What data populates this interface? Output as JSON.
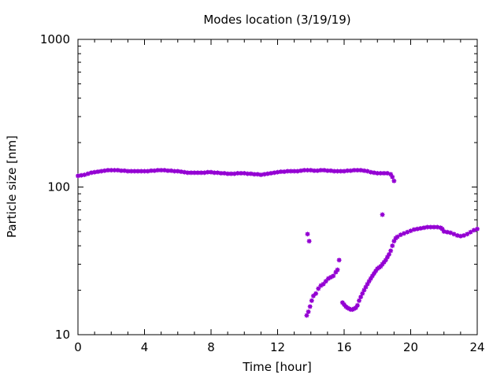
{
  "chart_data": {
    "type": "scatter",
    "title": "Modes location (3/19/19)",
    "xlabel": "Time [hour]",
    "ylabel": "Particle size [nm]",
    "xlim": [
      0,
      24
    ],
    "ylim": [
      10,
      1000
    ],
    "yscale": "log",
    "x_ticks": [
      0,
      4,
      8,
      12,
      16,
      20,
      24
    ],
    "y_ticks": [
      10,
      100,
      1000
    ],
    "grid": false,
    "legend": "none",
    "marker_color": "#9400d3",
    "series": [
      {
        "points": [
          [
            0.0,
            119
          ],
          [
            0.2,
            120
          ],
          [
            0.4,
            121
          ],
          [
            0.6,
            123
          ],
          [
            0.8,
            125
          ],
          [
            1.0,
            126
          ],
          [
            1.2,
            127
          ],
          [
            1.4,
            128
          ],
          [
            1.6,
            129
          ],
          [
            1.8,
            130
          ],
          [
            2.0,
            130
          ],
          [
            2.2,
            130
          ],
          [
            2.4,
            130
          ],
          [
            2.6,
            129
          ],
          [
            2.8,
            129
          ],
          [
            3.0,
            128
          ],
          [
            3.2,
            128
          ],
          [
            3.4,
            128
          ],
          [
            3.6,
            128
          ],
          [
            3.8,
            128
          ],
          [
            4.0,
            128
          ],
          [
            4.2,
            128
          ],
          [
            4.4,
            129
          ],
          [
            4.6,
            129
          ],
          [
            4.8,
            130
          ],
          [
            5.0,
            130
          ],
          [
            5.2,
            130
          ],
          [
            5.4,
            129
          ],
          [
            5.6,
            129
          ],
          [
            5.8,
            128
          ],
          [
            6.0,
            128
          ],
          [
            6.2,
            127
          ],
          [
            6.4,
            126
          ],
          [
            6.6,
            125
          ],
          [
            6.8,
            125
          ],
          [
            7.0,
            125
          ],
          [
            7.2,
            125
          ],
          [
            7.4,
            125
          ],
          [
            7.6,
            125
          ],
          [
            7.8,
            126
          ],
          [
            8.0,
            126
          ],
          [
            8.2,
            125
          ],
          [
            8.4,
            125
          ],
          [
            8.6,
            124
          ],
          [
            8.8,
            124
          ],
          [
            9.0,
            123
          ],
          [
            9.2,
            123
          ],
          [
            9.4,
            123
          ],
          [
            9.6,
            124
          ],
          [
            9.8,
            124
          ],
          [
            10.0,
            124
          ],
          [
            10.2,
            123
          ],
          [
            10.4,
            123
          ],
          [
            10.6,
            122
          ],
          [
            10.8,
            122
          ],
          [
            11.0,
            121
          ],
          [
            11.2,
            122
          ],
          [
            11.4,
            123
          ],
          [
            11.6,
            124
          ],
          [
            11.8,
            125
          ],
          [
            12.0,
            126
          ],
          [
            12.2,
            127
          ],
          [
            12.4,
            127
          ],
          [
            12.6,
            128
          ],
          [
            12.8,
            128
          ],
          [
            13.0,
            128
          ],
          [
            13.2,
            128
          ],
          [
            13.4,
            129
          ],
          [
            13.6,
            130
          ],
          [
            13.8,
            130
          ],
          [
            14.0,
            130
          ],
          [
            14.2,
            129
          ],
          [
            14.4,
            129
          ],
          [
            14.6,
            130
          ],
          [
            14.8,
            130
          ],
          [
            15.0,
            129
          ],
          [
            15.2,
            129
          ],
          [
            15.4,
            128
          ],
          [
            15.6,
            128
          ],
          [
            15.8,
            128
          ],
          [
            16.0,
            128
          ],
          [
            16.2,
            129
          ],
          [
            16.4,
            129
          ],
          [
            16.6,
            130
          ],
          [
            16.8,
            130
          ],
          [
            17.0,
            130
          ],
          [
            17.2,
            129
          ],
          [
            17.4,
            128
          ],
          [
            17.6,
            126
          ],
          [
            17.8,
            125
          ],
          [
            18.0,
            124
          ],
          [
            18.2,
            124
          ],
          [
            18.4,
            124
          ],
          [
            18.6,
            124
          ],
          [
            18.8,
            122
          ],
          [
            18.9,
            117
          ],
          [
            19.0,
            110
          ],
          [
            13.8,
            48
          ],
          [
            13.9,
            43
          ],
          [
            18.3,
            65
          ],
          [
            13.75,
            13.5
          ],
          [
            13.85,
            14.3
          ],
          [
            13.95,
            15.5
          ],
          [
            14.05,
            17
          ],
          [
            14.15,
            18.3
          ],
          [
            14.3,
            19
          ],
          [
            14.45,
            20.5
          ],
          [
            14.6,
            21.5
          ],
          [
            14.75,
            22
          ],
          [
            14.9,
            23
          ],
          [
            15.05,
            24
          ],
          [
            15.2,
            24.5
          ],
          [
            15.35,
            25
          ],
          [
            15.5,
            26.5
          ],
          [
            15.6,
            27.5
          ],
          [
            15.7,
            32
          ],
          [
            15.9,
            16.5
          ],
          [
            16.0,
            16
          ],
          [
            16.1,
            15.5
          ],
          [
            16.2,
            15.2
          ],
          [
            16.3,
            15
          ],
          [
            16.4,
            14.8
          ],
          [
            16.5,
            14.8
          ],
          [
            16.6,
            15
          ],
          [
            16.7,
            15.2
          ],
          [
            16.8,
            15.8
          ],
          [
            16.9,
            17
          ],
          [
            17.0,
            18
          ],
          [
            17.1,
            19
          ],
          [
            17.2,
            20
          ],
          [
            17.3,
            21
          ],
          [
            17.4,
            22
          ],
          [
            17.5,
            23
          ],
          [
            17.6,
            24
          ],
          [
            17.7,
            25
          ],
          [
            17.8,
            26
          ],
          [
            17.9,
            27
          ],
          [
            18.0,
            28
          ],
          [
            18.1,
            28.5
          ],
          [
            18.2,
            29
          ],
          [
            18.3,
            30
          ],
          [
            18.4,
            31
          ],
          [
            18.5,
            32
          ],
          [
            18.6,
            33.5
          ],
          [
            18.7,
            35
          ],
          [
            18.8,
            37
          ],
          [
            18.9,
            40
          ],
          [
            19.0,
            43
          ],
          [
            19.1,
            45
          ],
          [
            19.2,
            46
          ],
          [
            19.4,
            47.5
          ],
          [
            19.6,
            48.5
          ],
          [
            19.8,
            49.5
          ],
          [
            20.0,
            50.5
          ],
          [
            20.2,
            51.5
          ],
          [
            20.4,
            52
          ],
          [
            20.6,
            52.5
          ],
          [
            20.8,
            53
          ],
          [
            21.0,
            53.5
          ],
          [
            21.2,
            53.5
          ],
          [
            21.4,
            53.5
          ],
          [
            21.6,
            53.5
          ],
          [
            21.8,
            53
          ],
          [
            21.9,
            52
          ],
          [
            22.0,
            50
          ],
          [
            22.2,
            49.5
          ],
          [
            22.4,
            49
          ],
          [
            22.6,
            48
          ],
          [
            22.8,
            47
          ],
          [
            23.0,
            46.5
          ],
          [
            23.2,
            47
          ],
          [
            23.4,
            48
          ],
          [
            23.6,
            49.5
          ],
          [
            23.8,
            51
          ],
          [
            24.0,
            52
          ]
        ]
      }
    ]
  }
}
